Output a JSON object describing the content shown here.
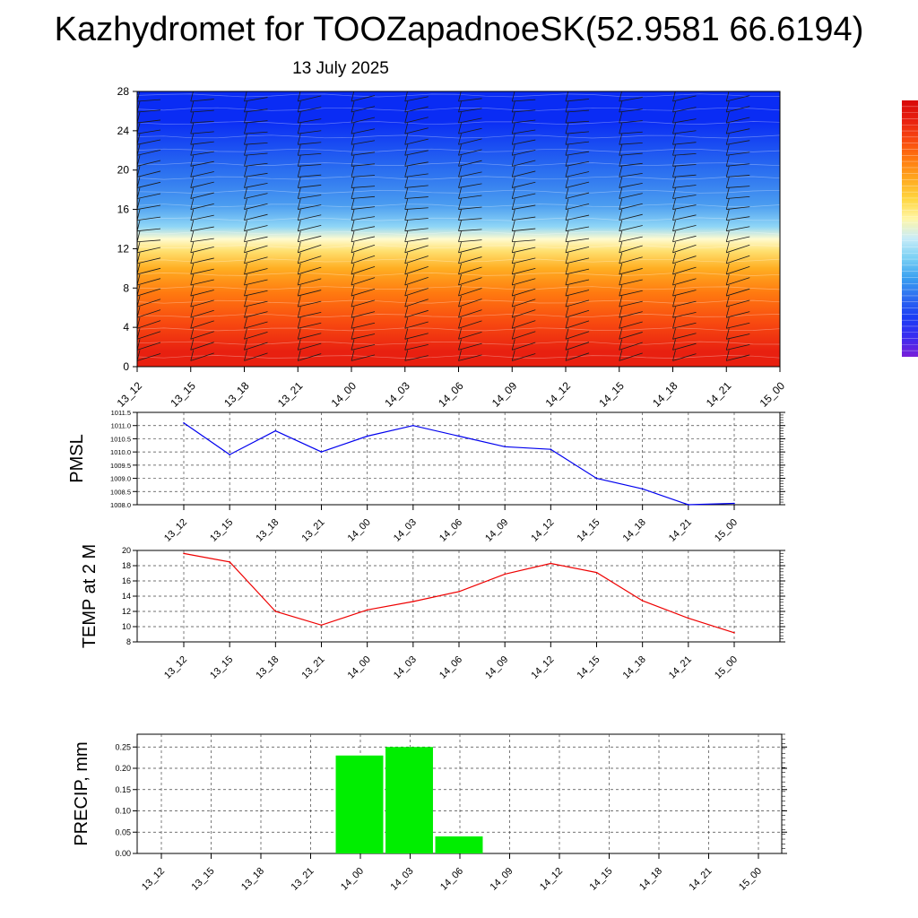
{
  "page": {
    "title": "Kazhydromet for TOOZapadnoeSK(52.9581 66.6194)",
    "subtitle": "13 July 2025"
  },
  "colors": {
    "pmsl_line": "#0000ee",
    "temp_line": "#ee0000",
    "precip_bar": "#00ee00",
    "colorbar": [
      "#7a1fd8",
      "#3a2cf0",
      "#1a3cf4",
      "#2e6cf0",
      "#3aa0f0",
      "#7ad0f4",
      "#c8ecf8",
      "#fff6a8",
      "#ffd640",
      "#ffaa20",
      "#ff7a10",
      "#f84810",
      "#e82010",
      "#d80808"
    ]
  },
  "chart_data": [
    {
      "type": "heatmap",
      "id": "profile",
      "categories": [
        "13_12",
        "13_15",
        "13_18",
        "13_21",
        "14_00",
        "14_03",
        "14_06",
        "14_09",
        "14_12",
        "14_15",
        "14_18",
        "14_21",
        "15_00"
      ],
      "yticks": [
        0,
        4,
        8,
        12,
        16,
        20,
        24,
        28
      ],
      "ylim": [
        0,
        28
      ],
      "overlay": "wind barbs",
      "color_layers_bottom_to_top": [
        {
          "from": 0,
          "to": 3,
          "color": "#e82010"
        },
        {
          "from": 3,
          "to": 6,
          "color": "#f84a10"
        },
        {
          "from": 6,
          "to": 9,
          "color": "#ff7a10"
        },
        {
          "from": 9,
          "to": 11,
          "color": "#ffae22"
        },
        {
          "from": 11,
          "to": 12.5,
          "color": "#ffe070"
        },
        {
          "from": 12.5,
          "to": 13.5,
          "color": "#fffbd0"
        },
        {
          "from": 13.5,
          "to": 15,
          "color": "#8fd6f6"
        },
        {
          "from": 15,
          "to": 18,
          "color": "#4a9cf0"
        },
        {
          "from": 18,
          "to": 22,
          "color": "#2a6ef0"
        },
        {
          "from": 22,
          "to": 28,
          "color": "#0a2cf4"
        }
      ]
    },
    {
      "type": "line",
      "id": "pmsl",
      "ylabel": "PMSL",
      "categories": [
        "13_12",
        "13_15",
        "13_18",
        "13_21",
        "14_00",
        "14_03",
        "14_06",
        "14_09",
        "14_12",
        "14_15",
        "14_18",
        "14_21",
        "15_00"
      ],
      "values": [
        1011.1,
        1009.9,
        1010.8,
        1010.0,
        1010.6,
        1011.0,
        1010.6,
        1010.2,
        1010.1,
        1009.0,
        1008.6,
        1008.0,
        1008.05
      ],
      "ylim": [
        1008.0,
        1011.5
      ],
      "yticks": [
        "1008.0",
        "1008.5",
        "1009.0",
        "1009.5",
        "1010.0",
        "1010.5",
        "1011.0",
        "1011.5"
      ],
      "grid": true
    },
    {
      "type": "line",
      "id": "temp",
      "ylabel": "TEMP at 2 M",
      "categories": [
        "13_12",
        "13_15",
        "13_18",
        "13_21",
        "14_00",
        "14_03",
        "14_06",
        "14_09",
        "14_12",
        "14_15",
        "14_18",
        "14_21",
        "15_00"
      ],
      "values": [
        19.6,
        18.5,
        12.0,
        10.2,
        12.2,
        13.3,
        14.6,
        16.9,
        18.3,
        17.1,
        13.4,
        11.1,
        9.2
      ],
      "ylim": [
        8,
        20
      ],
      "yticks": [
        "8",
        "10",
        "12",
        "14",
        "16",
        "18",
        "20"
      ],
      "grid": true
    },
    {
      "type": "bar",
      "id": "precip",
      "ylabel": "PRECIP, mm",
      "categories": [
        "13_12",
        "13_15",
        "13_18",
        "13_21",
        "14_00",
        "14_03",
        "14_06",
        "14_09",
        "14_12",
        "14_15",
        "14_18",
        "14_21",
        "15_00"
      ],
      "values": [
        0,
        0,
        0,
        0,
        0.23,
        0.25,
        0.04,
        0,
        0,
        0,
        0,
        0,
        0
      ],
      "ylim": [
        0,
        0.28
      ],
      "yticks": [
        "0.00",
        "0.05",
        "0.10",
        "0.15",
        "0.20",
        "0.25"
      ],
      "grid": true
    }
  ]
}
